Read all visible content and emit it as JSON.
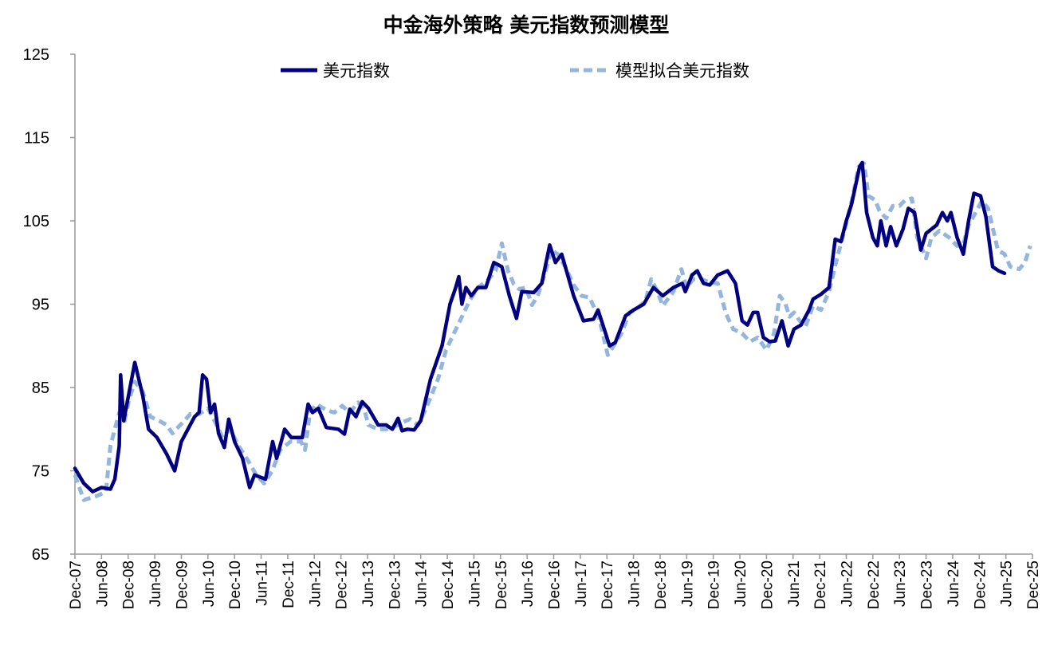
{
  "chart_data": {
    "type": "line",
    "title": "中金海外策略 美元指数预测模型",
    "xlabel": "",
    "ylabel": "",
    "ylim": [
      65,
      125
    ],
    "yticks": [
      65,
      75,
      85,
      95,
      105,
      115,
      125
    ],
    "x_unit": "months since Dec-07",
    "xlim": [
      0,
      216
    ],
    "xtick_labels": [
      "Dec-07",
      "Jun-08",
      "Dec-08",
      "Jun-09",
      "Dec-09",
      "Jun-10",
      "Dec-10",
      "Jun-11",
      "Dec-11",
      "Jun-12",
      "Dec-12",
      "Jun-13",
      "Dec-13",
      "Jun-14",
      "Dec-14",
      "Jun-15",
      "Dec-15",
      "Jun-16",
      "Dec-16",
      "Jun-17",
      "Dec-17",
      "Jun-18",
      "Dec-18",
      "Jun-19",
      "Dec-19",
      "Jun-20",
      "Dec-20",
      "Jun-21",
      "Dec-21",
      "Jun-22",
      "Dec-22",
      "Jun-23",
      "Dec-23",
      "Jun-24",
      "Dec-24",
      "Jun-25",
      "Dec-25"
    ],
    "grid": false,
    "legend_position": "top-center",
    "series": [
      {
        "name": "美元指数",
        "color": "#000080",
        "style": "solid",
        "points": [
          [
            0,
            75.3
          ],
          [
            2,
            73.5
          ],
          [
            4,
            72.5
          ],
          [
            6,
            73
          ],
          [
            8,
            72.8
          ],
          [
            9,
            74
          ],
          [
            10,
            78
          ],
          [
            11,
            81
          ],
          [
            10.3,
            86.5
          ],
          [
            11.7,
            83
          ],
          [
            13.5,
            88
          ],
          [
            15.3,
            84
          ],
          [
            16.6,
            80
          ],
          [
            18.5,
            79
          ],
          [
            20.7,
            77
          ],
          [
            22.5,
            75
          ],
          [
            24,
            78.5
          ],
          [
            27,
            81.5
          ],
          [
            28,
            82
          ],
          [
            28.8,
            86.5
          ],
          [
            29.7,
            86
          ],
          [
            30.6,
            82
          ],
          [
            31.5,
            83
          ],
          [
            32.4,
            79.5
          ],
          [
            33.7,
            77.8
          ],
          [
            34.7,
            81.2
          ],
          [
            36,
            78.5
          ],
          [
            37.8,
            76.5
          ],
          [
            39.4,
            73
          ],
          [
            40.5,
            74.5
          ],
          [
            43,
            74
          ],
          [
            44.6,
            78.5
          ],
          [
            45.5,
            76.5
          ],
          [
            47.3,
            80
          ],
          [
            48.8,
            79
          ],
          [
            51.3,
            79
          ],
          [
            52.6,
            83
          ],
          [
            53.6,
            82
          ],
          [
            54.9,
            82.5
          ],
          [
            56.7,
            80.2
          ],
          [
            59.4,
            80
          ],
          [
            60.8,
            79.4
          ],
          [
            62,
            82.4
          ],
          [
            63.4,
            81.5
          ],
          [
            64.8,
            83.3
          ],
          [
            66.2,
            82.5
          ],
          [
            68.4,
            80.5
          ],
          [
            70.2,
            80.5
          ],
          [
            71.6,
            80
          ],
          [
            72.9,
            81.3
          ],
          [
            73.8,
            79.8
          ],
          [
            75,
            80
          ],
          [
            76.5,
            79.9
          ],
          [
            78,
            81
          ],
          [
            80.2,
            86
          ],
          [
            82.8,
            90
          ],
          [
            84.6,
            95
          ],
          [
            85.9,
            97
          ],
          [
            86.6,
            98.3
          ],
          [
            87.3,
            95
          ],
          [
            88.2,
            97
          ],
          [
            89.4,
            96
          ],
          [
            90.9,
            97
          ],
          [
            92.7,
            97
          ],
          [
            94.5,
            100
          ],
          [
            96.3,
            99.5
          ],
          [
            98,
            96
          ],
          [
            99.6,
            93.3
          ],
          [
            100.8,
            96.5
          ],
          [
            103.5,
            96.4
          ],
          [
            105.3,
            97.5
          ],
          [
            107.1,
            102.1
          ],
          [
            108.4,
            100
          ],
          [
            109.8,
            101
          ],
          [
            112.5,
            96
          ],
          [
            114.7,
            93
          ],
          [
            117,
            93.2
          ],
          [
            118,
            94.3
          ],
          [
            119.4,
            92
          ],
          [
            120.6,
            90
          ],
          [
            121.9,
            90.4
          ],
          [
            124.2,
            93.6
          ],
          [
            126,
            94.3
          ],
          [
            128.3,
            95
          ],
          [
            130.5,
            97
          ],
          [
            132.6,
            96
          ],
          [
            135,
            97
          ],
          [
            137,
            97.5
          ],
          [
            137.7,
            96.5
          ],
          [
            139.2,
            98.5
          ],
          [
            140.4,
            99
          ],
          [
            141.8,
            97.5
          ],
          [
            143.2,
            97.3
          ],
          [
            145,
            98.5
          ],
          [
            147.2,
            99
          ],
          [
            149,
            97.5
          ],
          [
            150.5,
            93
          ],
          [
            151.7,
            92.5
          ],
          [
            153,
            94
          ],
          [
            154,
            94
          ],
          [
            155.3,
            91
          ],
          [
            156.7,
            90.5
          ],
          [
            158,
            90.6
          ],
          [
            159.5,
            93
          ],
          [
            160.9,
            90
          ],
          [
            162.2,
            92
          ],
          [
            163.8,
            92.5
          ],
          [
            165.6,
            94.3
          ],
          [
            166.5,
            95.6
          ],
          [
            168.3,
            96.2
          ],
          [
            170.1,
            97
          ],
          [
            171.5,
            102.8
          ],
          [
            172.8,
            102.5
          ],
          [
            174,
            105
          ],
          [
            175.2,
            107
          ],
          [
            176,
            109
          ],
          [
            177,
            111.5
          ],
          [
            177.6,
            112
          ],
          [
            178.6,
            106
          ],
          [
            180,
            103
          ],
          [
            181,
            102
          ],
          [
            181.8,
            105
          ],
          [
            183,
            102
          ],
          [
            184,
            104.3
          ],
          [
            185.3,
            102
          ],
          [
            186.8,
            104
          ],
          [
            188,
            106.5
          ],
          [
            189.4,
            106
          ],
          [
            190.8,
            101.5
          ],
          [
            192,
            103.5
          ],
          [
            194.4,
            104.5
          ],
          [
            195.7,
            106
          ],
          [
            196.8,
            105
          ],
          [
            197.6,
            106
          ],
          [
            199,
            103
          ],
          [
            200.4,
            101
          ],
          [
            201.6,
            105
          ],
          [
            202.8,
            108.3
          ],
          [
            204.3,
            108
          ],
          [
            205.5,
            105.5
          ],
          [
            207,
            99.5
          ],
          [
            208.4,
            99
          ],
          [
            209.7,
            98.7
          ]
        ]
      },
      {
        "name": "模型拟合美元指数",
        "color": "#94B6DC",
        "style": "dashed",
        "points": [
          [
            0,
            74.5
          ],
          [
            2,
            71.5
          ],
          [
            5,
            72
          ],
          [
            7,
            72.5
          ],
          [
            8,
            78
          ],
          [
            10,
            82
          ],
          [
            11.2,
            81
          ],
          [
            12.2,
            83.5
          ],
          [
            13.5,
            85.7
          ],
          [
            15.3,
            84.5
          ],
          [
            17,
            81.5
          ],
          [
            19,
            81
          ],
          [
            20.7,
            80.5
          ],
          [
            22,
            79.5
          ],
          [
            23.4,
            80.3
          ],
          [
            24.7,
            81
          ],
          [
            26,
            81.8
          ],
          [
            28,
            81.8
          ],
          [
            30,
            82.5
          ],
          [
            31.5,
            81
          ],
          [
            33.3,
            79
          ],
          [
            35,
            80
          ],
          [
            36.9,
            78
          ],
          [
            39.3,
            76
          ],
          [
            40.9,
            74.5
          ],
          [
            42.7,
            73.5
          ],
          [
            44.5,
            75
          ],
          [
            46.3,
            77.5
          ],
          [
            48.6,
            78.5
          ],
          [
            51,
            78.5
          ],
          [
            51.9,
            77.5
          ],
          [
            53,
            82
          ],
          [
            54.5,
            83
          ],
          [
            56.7,
            82.3
          ],
          [
            58.5,
            82
          ],
          [
            60.3,
            82.8
          ],
          [
            62,
            82
          ],
          [
            63.9,
            83.2
          ],
          [
            65.3,
            82.3
          ],
          [
            66.2,
            80.5
          ],
          [
            68.4,
            80
          ],
          [
            71,
            80
          ],
          [
            73.8,
            80.8
          ],
          [
            75.6,
            81.2
          ],
          [
            77.4,
            80.5
          ],
          [
            79.2,
            82.5
          ],
          [
            81.9,
            86
          ],
          [
            83.7,
            89.5
          ],
          [
            85.5,
            91.5
          ],
          [
            87.3,
            93.5
          ],
          [
            89.1,
            95.5
          ],
          [
            90.9,
            97
          ],
          [
            93,
            97.8
          ],
          [
            94.9,
            99
          ],
          [
            96.3,
            102.3
          ],
          [
            97.7,
            99
          ],
          [
            99,
            97.4
          ],
          [
            100.2,
            96.8
          ],
          [
            101.7,
            97
          ],
          [
            103.1,
            94.9
          ],
          [
            104.4,
            96
          ],
          [
            106.2,
            99
          ],
          [
            107.4,
            101.5
          ],
          [
            108.9,
            101
          ],
          [
            110.7,
            99.4
          ],
          [
            112.5,
            97.3
          ],
          [
            114.3,
            96
          ],
          [
            116.1,
            95.8
          ],
          [
            118.3,
            93.2
          ],
          [
            120.2,
            88.9
          ],
          [
            121.5,
            90
          ],
          [
            123.3,
            91.5
          ],
          [
            125.1,
            94
          ],
          [
            126.9,
            94.5
          ],
          [
            128.7,
            95.4
          ],
          [
            130,
            98
          ],
          [
            131.4,
            96.5
          ],
          [
            132.6,
            94.8
          ],
          [
            135,
            96.5
          ],
          [
            136.8,
            99.2
          ],
          [
            138,
            97
          ],
          [
            139.5,
            98
          ],
          [
            141.3,
            98
          ],
          [
            143.2,
            97.6
          ],
          [
            145,
            97.5
          ],
          [
            146.9,
            93.8
          ],
          [
            148.5,
            92
          ],
          [
            150.5,
            91.5
          ],
          [
            152.3,
            90.5
          ],
          [
            154,
            91
          ],
          [
            156,
            89.5
          ],
          [
            157.7,
            91.5
          ],
          [
            159,
            96
          ],
          [
            160.3,
            95
          ],
          [
            161.2,
            93.5
          ],
          [
            162.2,
            94
          ],
          [
            163.5,
            93
          ],
          [
            164.8,
            92.3
          ],
          [
            166.5,
            94.8
          ],
          [
            168.3,
            94.3
          ],
          [
            170.1,
            96.5
          ],
          [
            171.9,
            100.5
          ],
          [
            173.7,
            104
          ],
          [
            175.5,
            108
          ],
          [
            176.8,
            111.5
          ],
          [
            178,
            111.9
          ],
          [
            179,
            108
          ],
          [
            180.5,
            107.5
          ],
          [
            181.5,
            106.2
          ],
          [
            183,
            105.3
          ],
          [
            184.5,
            106.8
          ],
          [
            186,
            106.8
          ],
          [
            187.3,
            107.5
          ],
          [
            188.8,
            107.7
          ],
          [
            190,
            103
          ],
          [
            192,
            100.5
          ],
          [
            193.2,
            103
          ],
          [
            195,
            103.8
          ],
          [
            197.2,
            103
          ],
          [
            199,
            102
          ],
          [
            200.4,
            102.2
          ],
          [
            201.6,
            104.5
          ],
          [
            203.4,
            106.2
          ],
          [
            204.6,
            107.4
          ],
          [
            206,
            106.5
          ],
          [
            207.1,
            104
          ],
          [
            208.2,
            101.5
          ],
          [
            209.7,
            101
          ],
          [
            211,
            99.5
          ],
          [
            213,
            99.2
          ],
          [
            214.3,
            100
          ],
          [
            215.5,
            102
          ]
        ]
      }
    ]
  }
}
